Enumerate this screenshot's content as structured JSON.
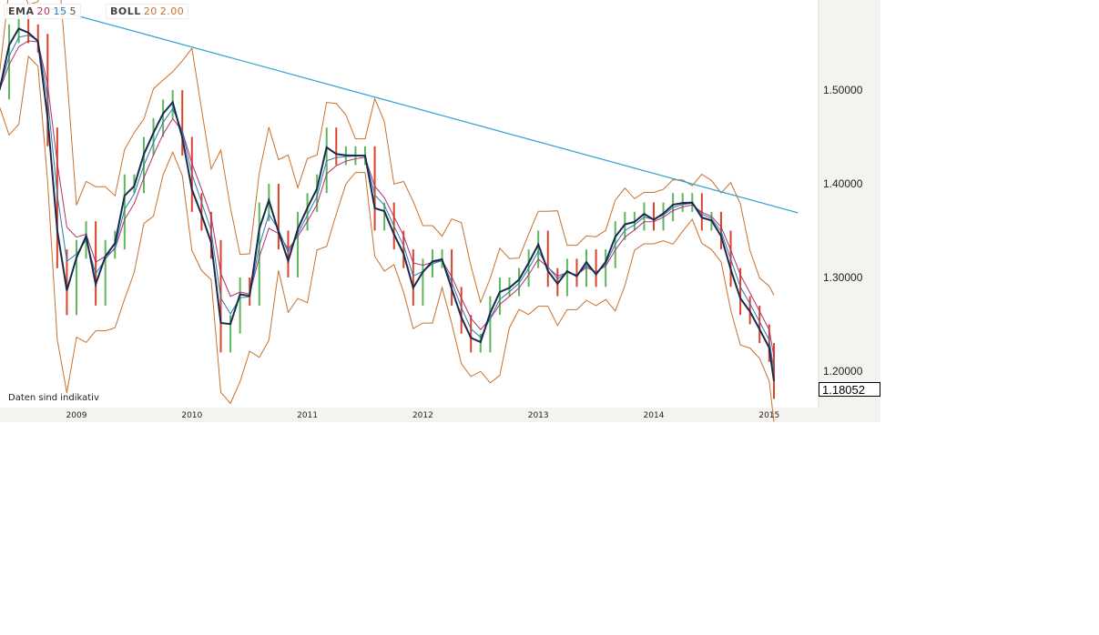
{
  "legend": {
    "ema": {
      "label": "EMA",
      "p1": "20",
      "p2": "15",
      "p3": "5",
      "colors": [
        "#b0306a",
        "#2a7ab0",
        "#6b4a2a"
      ]
    },
    "boll": {
      "label": "BOLL",
      "p1": "20",
      "p2": "2.00",
      "color": "#c8702a"
    }
  },
  "note": "Daten sind indikativ",
  "last_price": "1.18052",
  "chart_data": {
    "type": "line",
    "title": "",
    "xlabel": "",
    "ylabel": "",
    "ylim": [
      1.16,
      1.595
    ],
    "yticks": [
      "1.20000",
      "1.30000",
      "1.40000",
      "1.50000"
    ],
    "xticks": [
      "2009",
      "2010",
      "2011",
      "2012",
      "2013",
      "2014",
      "2015"
    ],
    "y_axis_position": "right",
    "grid": false,
    "colors": {
      "up": "#5cb85c",
      "down": "#d9442a",
      "ema_fast": "#1a2a4a",
      "trendline": "#2aa0d0",
      "bands": "#c8702a"
    },
    "start": "2008-05",
    "interval": "month",
    "close": [
      1.5,
      1.56,
      1.57,
      1.56,
      1.55,
      1.45,
      1.32,
      1.27,
      1.33,
      1.35,
      1.28,
      1.33,
      1.34,
      1.4,
      1.4,
      1.44,
      1.46,
      1.48,
      1.49,
      1.44,
      1.38,
      1.36,
      1.33,
      1.23,
      1.25,
      1.29,
      1.28,
      1.37,
      1.39,
      1.34,
      1.31,
      1.36,
      1.38,
      1.4,
      1.45,
      1.43,
      1.43,
      1.43,
      1.43,
      1.36,
      1.37,
      1.34,
      1.32,
      1.28,
      1.31,
      1.32,
      1.32,
      1.28,
      1.25,
      1.23,
      1.23,
      1.27,
      1.29,
      1.29,
      1.3,
      1.32,
      1.34,
      1.3,
      1.29,
      1.31,
      1.3,
      1.32,
      1.3,
      1.32,
      1.35,
      1.36,
      1.36,
      1.37,
      1.36,
      1.37,
      1.38,
      1.38,
      1.38,
      1.36,
      1.36,
      1.34,
      1.3,
      1.27,
      1.26,
      1.24,
      1.22,
      1.18052
    ],
    "trendline": [
      {
        "date": "2008-10",
        "value": 1.588
      },
      {
        "date": "2015-04",
        "value": 1.369
      }
    ]
  }
}
